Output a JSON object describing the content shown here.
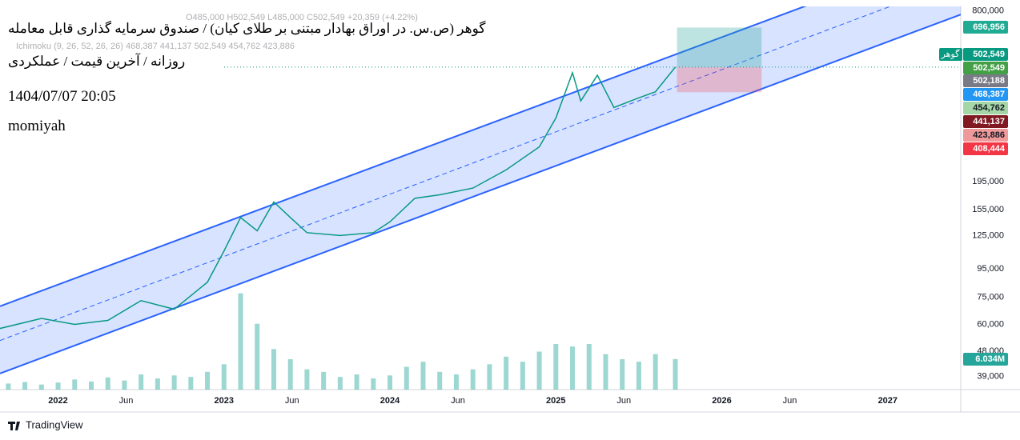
{
  "chart_data": {
    "type": "line",
    "title": "گوهر (ص.س. در اوراق بهادار مبتنی بر طلای کیان) / صندوق سرمایه گذاری قابل معامله",
    "subtitle": "روزانه / آخرین قیمت / عملکردی",
    "timestamp": "1404/07/07 20:05",
    "author": "momiyah",
    "ohlc_legend": "O485,000 H502,549 L485,000 C502,549 +20,359 (+4.22%)",
    "indicator_legend": "Ichimoku (9, 26, 52, 26, 26) 468,387 441,137 502,549 454,762 423,886",
    "symbol": "گوهر",
    "brand": "TradingView",
    "log_scale": true,
    "grid": false,
    "xlim": [
      2021.65,
      2027.44
    ],
    "ylim": [
      35000,
      830000
    ],
    "xticks": [
      2022,
      {
        "value": 2022.41,
        "label": "Jun"
      },
      2023,
      {
        "value": 2023.41,
        "label": "Jun"
      },
      2024,
      {
        "value": 2024.41,
        "label": "Jun"
      },
      2025,
      {
        "value": 2025.41,
        "label": "Jun"
      },
      2026,
      {
        "value": 2026.41,
        "label": "Jun"
      },
      2027
    ],
    "yticks": [
      {
        "value": 800000,
        "label": "800,000"
      },
      {
        "value": 195000,
        "label": "195,000"
      },
      {
        "value": 155000,
        "label": "155,000"
      },
      {
        "value": 125000,
        "label": "125,000"
      },
      {
        "value": 95000,
        "label": "95,000"
      },
      {
        "value": 75000,
        "label": "75,000"
      },
      {
        "value": 60000,
        "label": "60,000"
      },
      {
        "value": 48000,
        "label": "48,000"
      },
      {
        "value": 39000,
        "label": "39,000"
      }
    ],
    "price": {
      "color": "#089981",
      "x": [
        2021.65,
        2021.9,
        2022.1,
        2022.3,
        2022.5,
        2022.7,
        2022.9,
        2023.0,
        2023.1,
        2023.2,
        2023.3,
        2023.4,
        2023.5,
        2023.7,
        2023.9,
        2024.0,
        2024.15,
        2024.3,
        2024.5,
        2024.7,
        2024.9,
        2025.0,
        2025.1,
        2025.15,
        2025.25,
        2025.35,
        2025.5,
        2025.6,
        2025.72
      ],
      "values": [
        58000,
        63000,
        60000,
        62000,
        73000,
        68000,
        85000,
        110000,
        145000,
        130000,
        165000,
        145000,
        128000,
        125000,
        128000,
        140000,
        170000,
        175000,
        185000,
        215000,
        260000,
        330000,
        480000,
        380000,
        470000,
        360000,
        390000,
        410000,
        502549
      ]
    },
    "channel": {
      "color": "#2962ff",
      "x": [
        2021.65,
        2027.44
      ],
      "upper": [
        69700,
        1343000
      ],
      "middle": [
        52500,
        1033000
      ],
      "lower": [
        40000,
        776000
      ]
    },
    "volume": {
      "color": "#26a69a",
      "vlim": [
        0,
        30
      ],
      "x": [
        2021.7,
        2021.8,
        2021.9,
        2022.0,
        2022.1,
        2022.2,
        2022.3,
        2022.4,
        2022.5,
        2022.6,
        2022.7,
        2022.8,
        2022.9,
        2023.0,
        2023.1,
        2023.2,
        2023.3,
        2023.4,
        2023.5,
        2023.6,
        2023.7,
        2023.8,
        2023.9,
        2024.0,
        2024.1,
        2024.2,
        2024.3,
        2024.4,
        2024.5,
        2024.6,
        2024.7,
        2024.8,
        2024.9,
        2025.0,
        2025.1,
        2025.2,
        2025.3,
        2025.4,
        2025.5,
        2025.6,
        2025.72
      ],
      "values": [
        1.2,
        1.5,
        1.0,
        1.4,
        2.0,
        1.6,
        2.4,
        1.8,
        3.0,
        2.2,
        2.8,
        2.5,
        3.5,
        5.0,
        19.0,
        13.0,
        8.0,
        6.0,
        4.0,
        3.5,
        2.5,
        3.0,
        2.2,
        2.8,
        4.5,
        5.5,
        3.5,
        3.0,
        4.0,
        5.0,
        6.5,
        5.5,
        7.5,
        9.0,
        8.5,
        9.0,
        7.0,
        6.0,
        5.5,
        7.0,
        6.034
      ]
    },
    "position": {
      "x": [
        2025.73,
        2026.24
      ],
      "entry": 502549,
      "target": 696956,
      "stop": 408444
    },
    "price_tags": [
      {
        "value": 696956,
        "label": "696,956",
        "color": "#22ab94"
      },
      {
        "value": 502549,
        "label": "502,549",
        "color": "#089981"
      },
      {
        "value": 502549,
        "label": "502,549",
        "color": "#43a047"
      },
      {
        "value": 502188,
        "label": "502,188",
        "color": "#787b86"
      },
      {
        "value": 468387,
        "label": "468,387",
        "color": "#2196f3"
      },
      {
        "value": 454762,
        "label": "454,762",
        "color": "#a5d6a7"
      },
      {
        "value": 441137,
        "label": "441,137",
        "color": "#801922"
      },
      {
        "value": 423886,
        "label": "423,886",
        "color": "#ef9a9a"
      },
      {
        "value": 408444,
        "label": "408,444",
        "color": "#f23645"
      }
    ],
    "volume_tag": {
      "value": 6.034,
      "label": "6.034M",
      "color": "#26a69a"
    }
  }
}
